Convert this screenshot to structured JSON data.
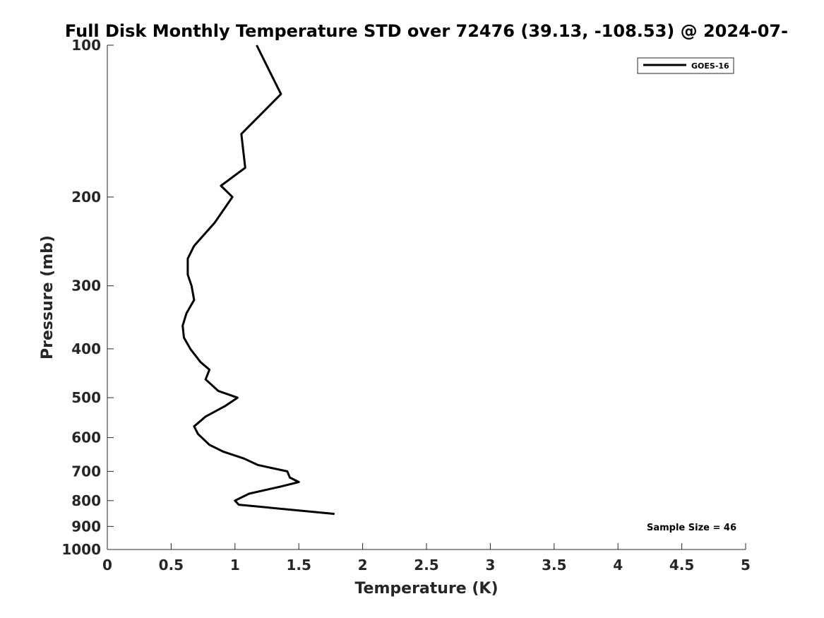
{
  "chart_data": {
    "type": "line",
    "title": "Full Disk Monthly Temperature STD over 72476 (39.13, -108.53) @ 2024-07-",
    "xlabel": "Temperature (K)",
    "ylabel": "Pressure (mb)",
    "xlim": [
      0,
      5
    ],
    "ylim": [
      1000,
      100
    ],
    "y_scale": "log",
    "y_reversed": true,
    "x_ticks": [
      "0",
      "0.5",
      "1",
      "1.5",
      "2",
      "2.5",
      "3",
      "3.5",
      "4",
      "4.5",
      "5"
    ],
    "y_ticks": [
      "100",
      "200",
      "300",
      "400",
      "500",
      "600",
      "700",
      "800",
      "900",
      "1000"
    ],
    "grid": false,
    "legend": {
      "position": "top-right",
      "entries": [
        "GOES-16"
      ]
    },
    "annotation": "Sample Size = 46",
    "series": [
      {
        "name": "GOES-16",
        "color": "#000000",
        "points": [
          {
            "x": 1.17,
            "y": 100
          },
          {
            "x": 1.36,
            "y": 125
          },
          {
            "x": 1.05,
            "y": 150
          },
          {
            "x": 1.08,
            "y": 175
          },
          {
            "x": 0.89,
            "y": 190
          },
          {
            "x": 0.98,
            "y": 200
          },
          {
            "x": 0.84,
            "y": 225
          },
          {
            "x": 0.68,
            "y": 250
          },
          {
            "x": 0.63,
            "y": 265
          },
          {
            "x": 0.63,
            "y": 285
          },
          {
            "x": 0.66,
            "y": 300
          },
          {
            "x": 0.68,
            "y": 320
          },
          {
            "x": 0.62,
            "y": 340
          },
          {
            "x": 0.59,
            "y": 360
          },
          {
            "x": 0.6,
            "y": 380
          },
          {
            "x": 0.65,
            "y": 400
          },
          {
            "x": 0.73,
            "y": 425
          },
          {
            "x": 0.8,
            "y": 440
          },
          {
            "x": 0.77,
            "y": 460
          },
          {
            "x": 0.87,
            "y": 485
          },
          {
            "x": 1.02,
            "y": 500
          },
          {
            "x": 0.92,
            "y": 520
          },
          {
            "x": 0.77,
            "y": 545
          },
          {
            "x": 0.68,
            "y": 570
          },
          {
            "x": 0.71,
            "y": 590
          },
          {
            "x": 0.8,
            "y": 620
          },
          {
            "x": 0.91,
            "y": 640
          },
          {
            "x": 1.07,
            "y": 660
          },
          {
            "x": 1.18,
            "y": 680
          },
          {
            "x": 1.41,
            "y": 700
          },
          {
            "x": 1.43,
            "y": 720
          },
          {
            "x": 1.5,
            "y": 735
          },
          {
            "x": 1.36,
            "y": 750
          },
          {
            "x": 1.11,
            "y": 775
          },
          {
            "x": 1.0,
            "y": 800
          },
          {
            "x": 1.03,
            "y": 815
          },
          {
            "x": 1.78,
            "y": 850
          }
        ]
      }
    ]
  }
}
